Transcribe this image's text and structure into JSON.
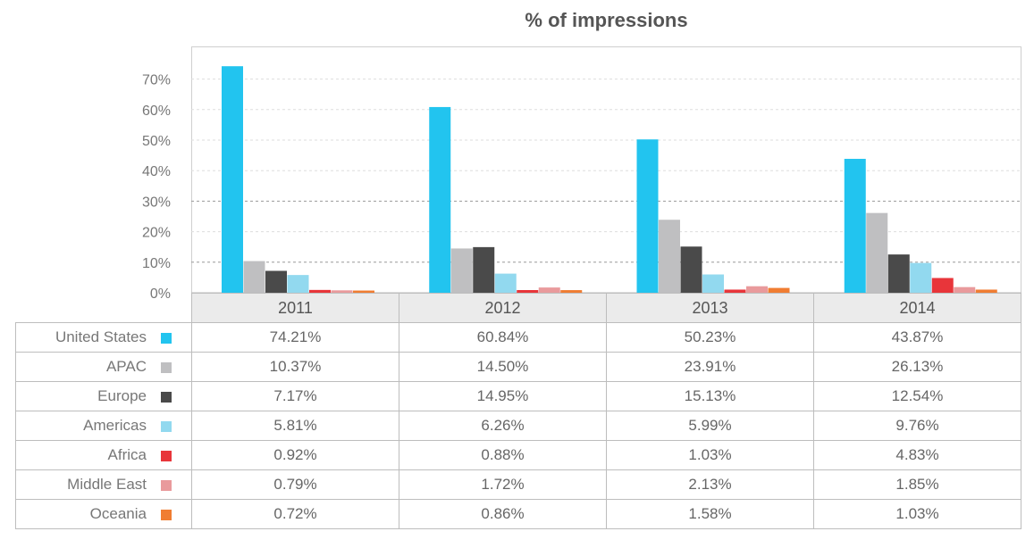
{
  "chart_data": {
    "type": "bar",
    "title": "% of impressions",
    "categories": [
      "2011",
      "2012",
      "2013",
      "2014"
    ],
    "y_ticks": [
      "0%",
      "10%",
      "20%",
      "30%",
      "40%",
      "50%",
      "60%",
      "70%"
    ],
    "ylim": [
      0,
      80
    ],
    "grid": true,
    "legend": "table-left",
    "series": [
      {
        "name": "United States",
        "color": "#22c4ef",
        "values": [
          74.21,
          60.84,
          50.23,
          43.87
        ],
        "labels": [
          "74.21%",
          "60.84%",
          "50.23%",
          "43.87%"
        ]
      },
      {
        "name": "APAC",
        "color": "#bfbfc1",
        "values": [
          10.37,
          14.5,
          23.91,
          26.13
        ],
        "labels": [
          "10.37%",
          "14.50%",
          "23.91%",
          "26.13%"
        ]
      },
      {
        "name": "Europe",
        "color": "#4a4a4a",
        "values": [
          7.17,
          14.95,
          15.13,
          12.54
        ],
        "labels": [
          "7.17%",
          "14.95%",
          "15.13%",
          "12.54%"
        ]
      },
      {
        "name": "Americas",
        "color": "#92d9ef",
        "values": [
          5.81,
          6.26,
          5.99,
          9.76
        ],
        "labels": [
          "5.81%",
          "6.26%",
          "5.99%",
          "9.76%"
        ]
      },
      {
        "name": "Africa",
        "color": "#e8353a",
        "values": [
          0.92,
          0.88,
          1.03,
          4.83
        ],
        "labels": [
          "0.92%",
          "0.88%",
          "1.03%",
          "4.83%"
        ]
      },
      {
        "name": "Middle East",
        "color": "#e99a9c",
        "values": [
          0.79,
          1.72,
          2.13,
          1.85
        ],
        "labels": [
          "0.79%",
          "1.72%",
          "2.13%",
          "1.85%"
        ]
      },
      {
        "name": "Oceania",
        "color": "#f07d32",
        "values": [
          0.72,
          0.86,
          1.58,
          1.03
        ],
        "labels": [
          "0.72%",
          "0.86%",
          "1.58%",
          "1.03%"
        ]
      }
    ]
  }
}
